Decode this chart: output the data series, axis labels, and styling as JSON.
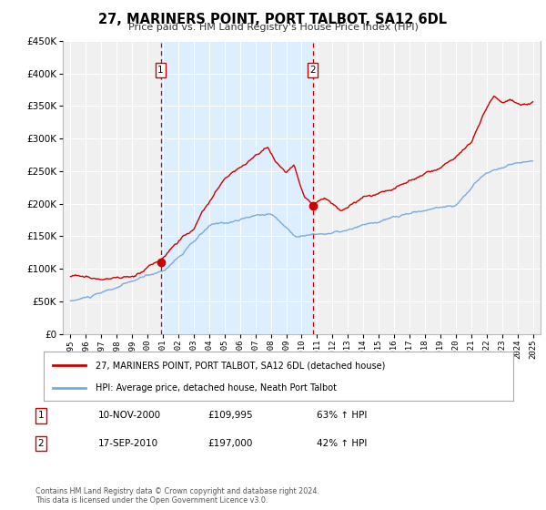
{
  "title": "27, MARINERS POINT, PORT TALBOT, SA12 6DL",
  "subtitle": "Price paid vs. HM Land Registry's House Price Index (HPI)",
  "legend_line1": "27, MARINERS POINT, PORT TALBOT, SA12 6DL (detached house)",
  "legend_line2": "HPI: Average price, detached house, Neath Port Talbot",
  "marker1_date": "10-NOV-2000",
  "marker1_price": 109995,
  "marker1_label": "63% ↑ HPI",
  "marker2_date": "17-SEP-2010",
  "marker2_price": 197000,
  "marker2_label": "42% ↑ HPI",
  "footer": "Contains HM Land Registry data © Crown copyright and database right 2024.\nThis data is licensed under the Open Government Licence v3.0.",
  "red_color": "#cc0000",
  "blue_color": "#7aaadd",
  "shading_color": "#ddeeff",
  "background_color": "#f0f0f0",
  "ylim": [
    0,
    450000
  ],
  "yticks": [
    0,
    50000,
    100000,
    150000,
    200000,
    250000,
    300000,
    350000,
    400000,
    450000
  ],
  "marker1_x": 2000.85,
  "marker2_x": 2010.71,
  "vline1_x": 2000.85,
  "vline2_x": 2010.71,
  "xlim_min": 1994.5,
  "xlim_max": 2025.5
}
